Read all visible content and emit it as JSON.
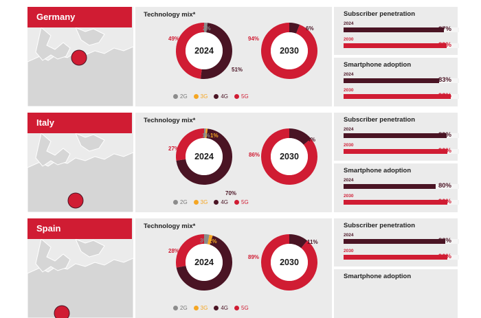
{
  "colors": {
    "accent_red": "#d01c33",
    "dark_maroon": "#4a1424",
    "panel_gray": "#ebebeb",
    "g2": "#8c8c8c",
    "g3": "#f5a623",
    "g4": "#4a1424",
    "g5": "#d01c33"
  },
  "legend": [
    "2G",
    "3G",
    "4G",
    "5G"
  ],
  "chart_data": [
    {
      "type": "pie",
      "country": "Germany",
      "title": "Technology mix*",
      "donuts": [
        {
          "center": "2024",
          "series": [
            {
              "name": "2G",
              "value": 2
            },
            {
              "name": "3G",
              "value": 0
            },
            {
              "name": "4G",
              "value": 51
            },
            {
              "name": "5G",
              "value": 49
            }
          ],
          "labels": [
            "2%",
            "51%",
            "49%"
          ]
        },
        {
          "center": "2030",
          "series": [
            {
              "name": "4G",
              "value": 6
            },
            {
              "name": "5G",
              "value": 94
            }
          ],
          "labels": [
            "6%",
            "94%"
          ]
        }
      ],
      "subscriber_penetration": {
        "title": "Subscriber penetration",
        "rows": [
          {
            "year": "2024",
            "value": 87,
            "label": "87%"
          },
          {
            "year": "2030",
            "value": 89,
            "label": "89%"
          }
        ]
      },
      "smartphone_adoption": {
        "title": "Smartphone adoption",
        "rows": [
          {
            "year": "2024",
            "value": 83,
            "label": "83%"
          },
          {
            "year": "2030",
            "value": 93,
            "label": "93%"
          }
        ]
      }
    },
    {
      "type": "pie",
      "country": "Italy",
      "title": "Technology mix*",
      "donuts": [
        {
          "center": "2024",
          "series": [
            {
              "name": "2G",
              "value": 1
            },
            {
              "name": "3G",
              "value": 1
            },
            {
              "name": "4G",
              "value": 70
            },
            {
              "name": "5G",
              "value": 27
            }
          ],
          "labels": [
            "1%",
            "1%",
            "70%",
            "27%"
          ]
        },
        {
          "center": "2030",
          "series": [
            {
              "name": "4G",
              "value": 14
            },
            {
              "name": "5G",
              "value": 86
            }
          ],
          "labels": [
            "14%",
            "86%"
          ]
        }
      ],
      "subscriber_penetration": {
        "title": "Subscriber penetration",
        "rows": [
          {
            "year": "2024",
            "value": 89,
            "label": "89%"
          },
          {
            "year": "2030",
            "value": 90,
            "label": "90%"
          }
        ]
      },
      "smartphone_adoption": {
        "title": "Smartphone adoption",
        "rows": [
          {
            "year": "2024",
            "value": 80,
            "label": "80%"
          },
          {
            "year": "2030",
            "value": 90,
            "label": "90%"
          }
        ]
      }
    },
    {
      "type": "pie",
      "country": "Spain",
      "title": "Technology mix*",
      "donuts": [
        {
          "center": "2024",
          "series": [
            {
              "name": "2G",
              "value": 3
            },
            {
              "name": "3G",
              "value": 2
            },
            {
              "name": "4G",
              "value": 67
            },
            {
              "name": "5G",
              "value": 28
            }
          ],
          "labels": [
            "3%",
            "2%",
            "28%"
          ]
        },
        {
          "center": "2030",
          "series": [
            {
              "name": "4G",
              "value": 11
            },
            {
              "name": "5G",
              "value": 89
            }
          ],
          "labels": [
            "11%",
            "89%"
          ]
        }
      ],
      "subscriber_penetration": {
        "title": "Subscriber penetration",
        "rows": [
          {
            "year": "2024",
            "value": 88,
            "label": "88%"
          },
          {
            "year": "2030",
            "value": 90,
            "label": "90%"
          }
        ]
      },
      "smartphone_adoption": {
        "title": "Smartphone adoption",
        "rows": []
      }
    }
  ]
}
